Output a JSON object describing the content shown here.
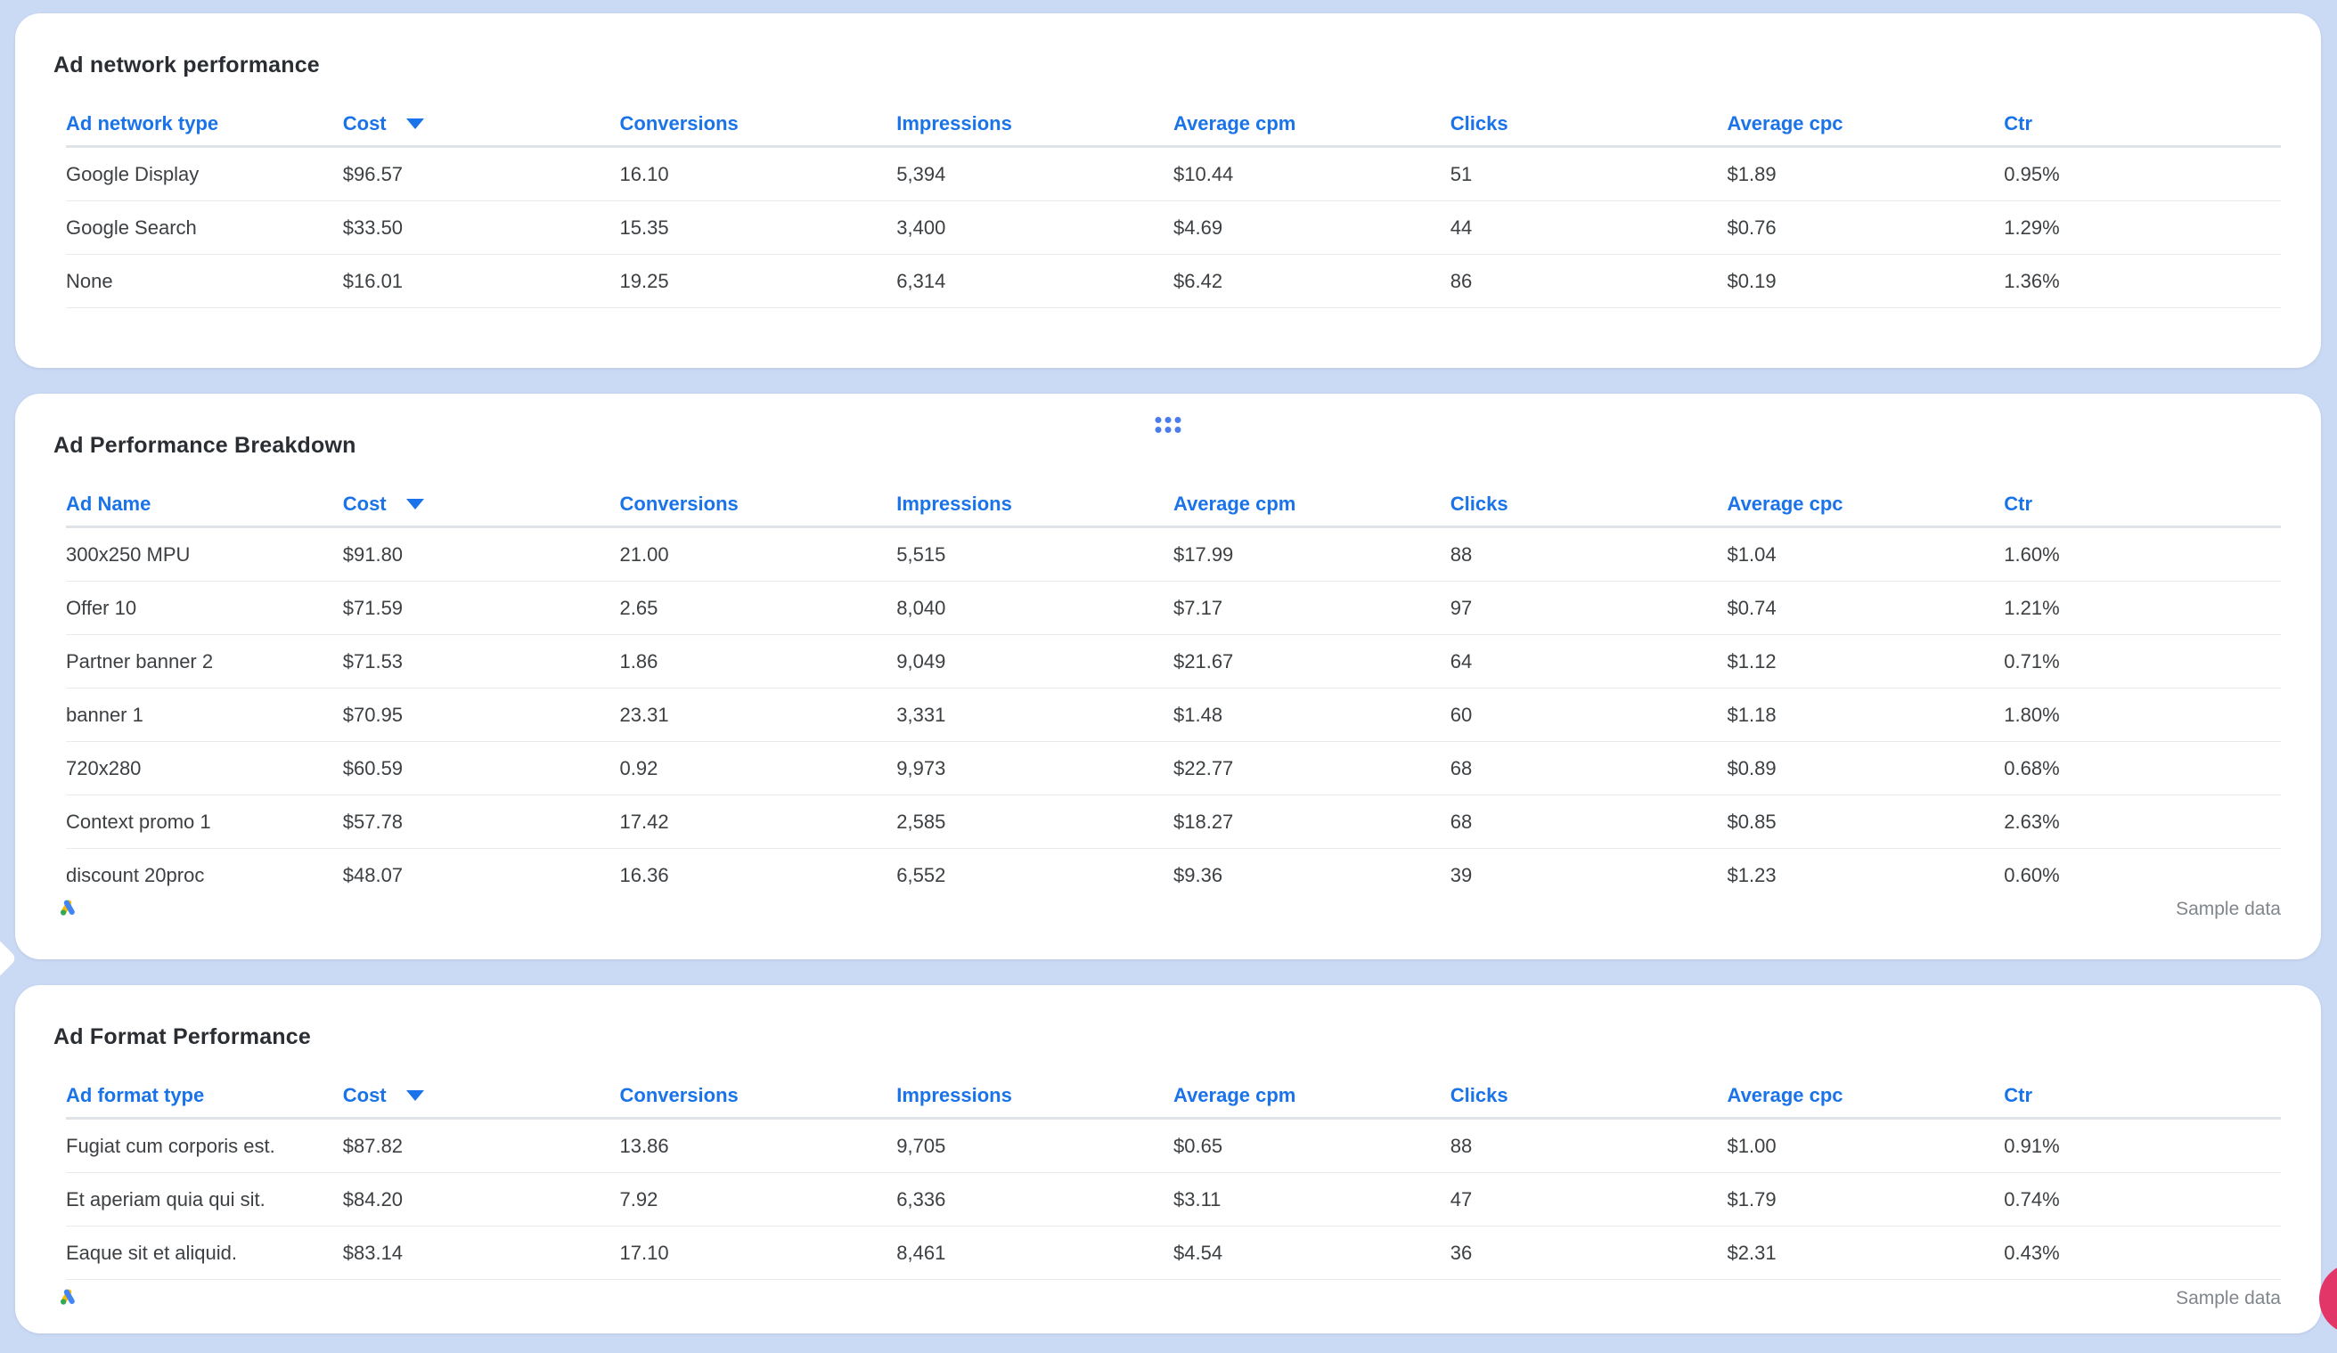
{
  "canvas": {
    "background_color": "#cad9f4",
    "accent_blue": "#1a73e8",
    "fab_color": "#e23568"
  },
  "footer": {
    "sample_data_label": "Sample data"
  },
  "icons": {
    "drag_handle": "six-dot-drag-handle",
    "google_ads": "google-ads-logo",
    "sort_caret": "sort-descending-caret",
    "side_handle": "left-edge-diamond-handle",
    "fab": "pink-floating-action-button"
  },
  "tables": [
    {
      "title": "Ad network performance",
      "columns": [
        {
          "label": "Ad network type",
          "sort": null
        },
        {
          "label": "Cost",
          "sort": "desc"
        },
        {
          "label": "Conversions",
          "sort": null
        },
        {
          "label": "Impressions",
          "sort": null
        },
        {
          "label": "Average cpm",
          "sort": null
        },
        {
          "label": "Clicks",
          "sort": null
        },
        {
          "label": "Average cpc",
          "sort": null
        },
        {
          "label": "Ctr",
          "sort": null
        }
      ],
      "rows": [
        [
          "Google Display",
          "$96.57",
          "16.10",
          "5,394",
          "$10.44",
          "51",
          "$1.89",
          "0.95%"
        ],
        [
          "Google Search",
          "$33.50",
          "15.35",
          "3,400",
          "$4.69",
          "44",
          "$0.76",
          "1.29%"
        ],
        [
          "None",
          "$16.01",
          "19.25",
          "6,314",
          "$6.42",
          "86",
          "$0.19",
          "1.36%"
        ]
      ],
      "clip_last_row_border": false
    },
    {
      "title": "Ad Performance Breakdown",
      "columns": [
        {
          "label": "Ad Name",
          "sort": null
        },
        {
          "label": "Cost",
          "sort": "desc"
        },
        {
          "label": "Conversions",
          "sort": null
        },
        {
          "label": "Impressions",
          "sort": null
        },
        {
          "label": "Average cpm",
          "sort": null
        },
        {
          "label": "Clicks",
          "sort": null
        },
        {
          "label": "Average cpc",
          "sort": null
        },
        {
          "label": "Ctr",
          "sort": null
        }
      ],
      "rows": [
        [
          "300x250 MPU",
          "$91.80",
          "21.00",
          "5,515",
          "$17.99",
          "88",
          "$1.04",
          "1.60%"
        ],
        [
          "Offer 10",
          "$71.59",
          "2.65",
          "8,040",
          "$7.17",
          "97",
          "$0.74",
          "1.21%"
        ],
        [
          "Partner banner 2",
          "$71.53",
          "1.86",
          "9,049",
          "$21.67",
          "64",
          "$1.12",
          "0.71%"
        ],
        [
          "banner 1",
          "$70.95",
          "23.31",
          "3,331",
          "$1.48",
          "60",
          "$1.18",
          "1.80%"
        ],
        [
          "720x280",
          "$60.59",
          "0.92",
          "9,973",
          "$22.77",
          "68",
          "$0.89",
          "0.68%"
        ],
        [
          "Context promo 1",
          "$57.78",
          "17.42",
          "2,585",
          "$18.27",
          "68",
          "$0.85",
          "2.63%"
        ],
        [
          "discount 20proc",
          "$48.07",
          "16.36",
          "6,552",
          "$9.36",
          "39",
          "$1.23",
          "0.60%"
        ]
      ],
      "clip_last_row_border": true
    },
    {
      "title": "Ad Format Performance",
      "columns": [
        {
          "label": "Ad format type",
          "sort": null
        },
        {
          "label": "Cost",
          "sort": "desc"
        },
        {
          "label": "Conversions",
          "sort": null
        },
        {
          "label": "Impressions",
          "sort": null
        },
        {
          "label": "Average cpm",
          "sort": null
        },
        {
          "label": "Clicks",
          "sort": null
        },
        {
          "label": "Average cpc",
          "sort": null
        },
        {
          "label": "Ctr",
          "sort": null
        }
      ],
      "rows": [
        [
          "Fugiat cum corporis est.",
          "$87.82",
          "13.86",
          "9,705",
          "$0.65",
          "88",
          "$1.00",
          "0.91%"
        ],
        [
          "Et aperiam quia qui sit.",
          "$84.20",
          "7.92",
          "6,336",
          "$3.11",
          "47",
          "$1.79",
          "0.74%"
        ],
        [
          "Eaque sit et aliquid.",
          "$83.14",
          "17.10",
          "8,461",
          "$4.54",
          "36",
          "$2.31",
          "0.43%"
        ]
      ],
      "clip_last_row_border": false
    }
  ]
}
